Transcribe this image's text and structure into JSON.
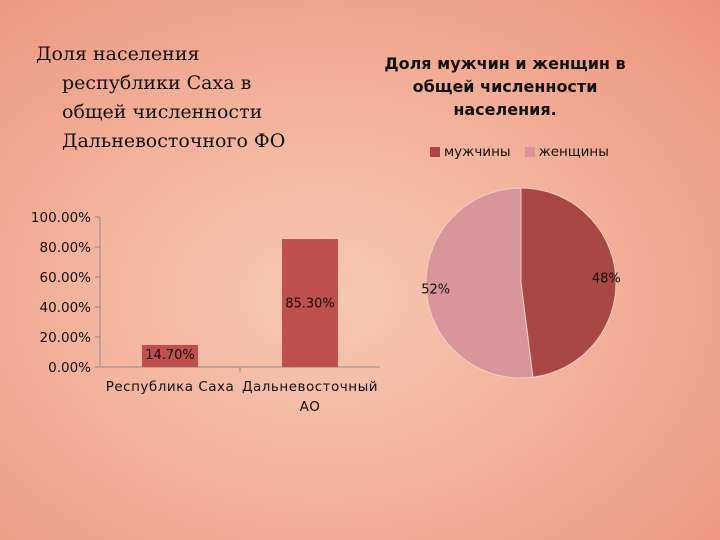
{
  "charts": {
    "bar": {
      "title_lines": [
        "Доля населения",
        "республики Саха в",
        "общей численности",
        "Дальневосточного ФО"
      ]
    },
    "pie": {
      "title_lines": [
        "Доля мужчин и женщин в",
        "общей численности",
        "населения."
      ]
    }
  },
  "colors": {
    "bar": "#c0504d",
    "men": "#a94744",
    "women": "#d9969a",
    "axis": "#8c8c8c"
  },
  "chart_data": [
    {
      "type": "bar",
      "title": "Доля населения республики Саха в общей численности Дальневосточного ФО",
      "categories": [
        "Республика Саха",
        "Дальневосточный АО"
      ],
      "category_label_lines": [
        [
          "Республика Саха"
        ],
        [
          "Дальневосточный",
          "АО"
        ]
      ],
      "values": [
        0.147,
        0.853
      ],
      "data_labels": [
        "14.70%",
        "85.30%"
      ],
      "y_tick_labels": [
        "0.00%",
        "20.00%",
        "40.00%",
        "60.00%",
        "80.00%",
        "100.00%"
      ],
      "ylim": [
        0,
        1
      ],
      "grid": false,
      "legend": "none"
    },
    {
      "type": "pie",
      "title": "Доля мужчин и женщин в общей численности населения.",
      "labels": [
        "мужчины",
        "женщины"
      ],
      "values": [
        48,
        52
      ],
      "data_labels": [
        "48%",
        "52%"
      ],
      "legend": "top"
    }
  ]
}
